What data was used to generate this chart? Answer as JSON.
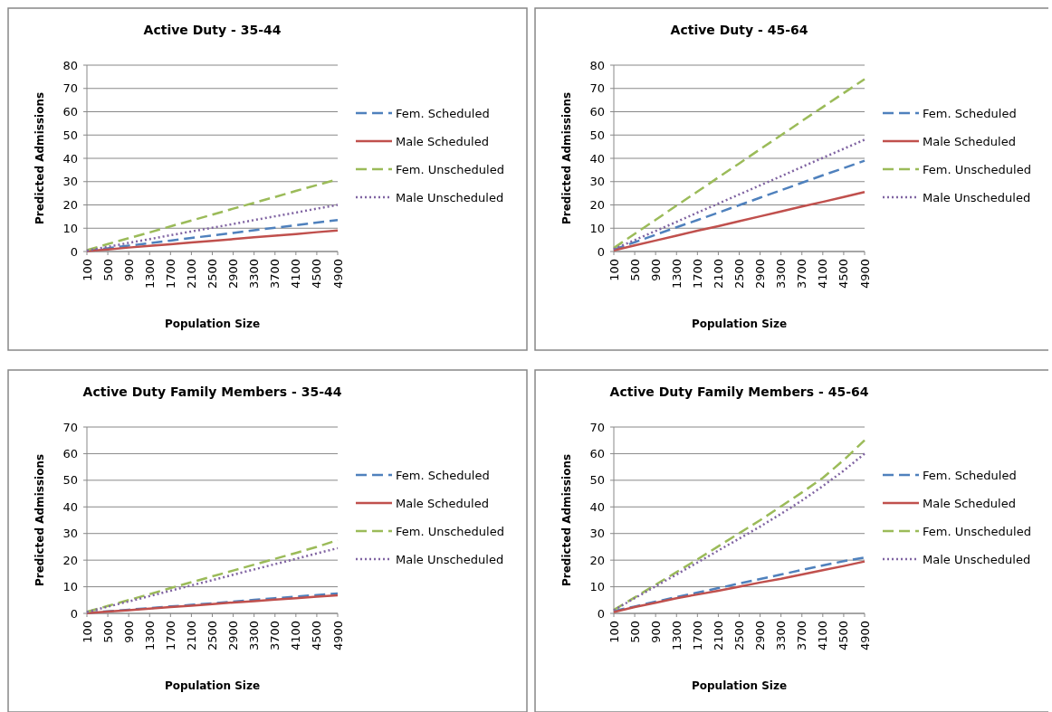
{
  "chart_data": [
    {
      "type": "line",
      "title": "Active Duty - 35-44",
      "xlabel": "Population Size",
      "ylabel": "Predicted Admissions",
      "categories": [
        "100",
        "500",
        "900",
        "1300",
        "1700",
        "2100",
        "2500",
        "2900",
        "3300",
        "3700",
        "4100",
        "4500",
        "4900"
      ],
      "ylim": [
        0,
        80
      ],
      "yticks": [
        0,
        10,
        20,
        30,
        40,
        50,
        60,
        70,
        80
      ],
      "grid": "y",
      "legend": "right",
      "series": [
        {
          "name": "Fem. Scheduled",
          "color": "#4f81bd",
          "line_style": "dashed",
          "values": [
            0.3,
            1.4,
            2.5,
            3.6,
            4.7,
            5.8,
            6.9,
            8,
            9.1,
            10.2,
            11.3,
            12.4,
            13.5
          ]
        },
        {
          "name": "Male Scheduled",
          "color": "#c0504d",
          "line_style": "solid",
          "values": [
            0.2,
            0.9,
            1.7,
            2.4,
            3.1,
            3.9,
            4.6,
            5.3,
            6.1,
            6.8,
            7.5,
            8.3,
            9
          ]
        },
        {
          "name": "Fem. Unscheduled",
          "color": "#9bbb59",
          "line_style": "dashed",
          "values": [
            0.6,
            3.2,
            5.7,
            8.2,
            10.8,
            13.3,
            15.8,
            18.4,
            20.9,
            23.4,
            26,
            28.5,
            31
          ]
        },
        {
          "name": "Male Unscheduled",
          "color": "#8064a2",
          "line_style": "dotted",
          "values": [
            0.4,
            2,
            3.7,
            5.3,
            7,
            8.6,
            10.2,
            11.8,
            13.5,
            15.1,
            16.7,
            18.4,
            20
          ]
        }
      ]
    },
    {
      "type": "line",
      "title": "Active Duty - 45-64",
      "xlabel": "Population Size",
      "ylabel": "Predicted Admissions",
      "categories": [
        "100",
        "500",
        "900",
        "1300",
        "1700",
        "2100",
        "2500",
        "2900",
        "3300",
        "3700",
        "4100",
        "4500",
        "4900"
      ],
      "ylim": [
        0,
        80
      ],
      "yticks": [
        0,
        10,
        20,
        30,
        40,
        50,
        60,
        70,
        80
      ],
      "grid": "y",
      "legend": "right",
      "series": [
        {
          "name": "Fem. Scheduled",
          "color": "#4f81bd",
          "line_style": "dashed",
          "values": [
            0.8,
            4,
            7.2,
            10.4,
            13.5,
            16.7,
            19.9,
            23.1,
            26.3,
            29.5,
            32.7,
            35.8,
            39
          ]
        },
        {
          "name": "Male Scheduled",
          "color": "#c0504d",
          "line_style": "solid",
          "values": [
            0.5,
            2.6,
            4.7,
            6.8,
            8.9,
            10.9,
            13,
            15.1,
            17.2,
            19.3,
            21.3,
            23.4,
            25.5
          ]
        },
        {
          "name": "Fem. Unscheduled",
          "color": "#9bbb59",
          "line_style": "dashed",
          "values": [
            1.5,
            7.6,
            13.6,
            19.7,
            25.7,
            31.8,
            37.8,
            43.9,
            49.9,
            56,
            62,
            68,
            74
          ]
        },
        {
          "name": "Male Unscheduled",
          "color": "#8064a2",
          "line_style": "dotted",
          "values": [
            1,
            4.9,
            8.8,
            12.7,
            16.7,
            20.6,
            24.5,
            28.4,
            32.3,
            36.3,
            40.2,
            44.1,
            48
          ]
        }
      ]
    },
    {
      "type": "line",
      "title": "Active Duty Family Members - 35-44",
      "xlabel": "Population Size",
      "ylabel": "Predicted Admissions",
      "categories": [
        "100",
        "500",
        "900",
        "1300",
        "1700",
        "2100",
        "2500",
        "2900",
        "3300",
        "3700",
        "4100",
        "4500",
        "4900"
      ],
      "ylim": [
        0,
        70
      ],
      "yticks": [
        0,
        10,
        20,
        30,
        40,
        50,
        60,
        70
      ],
      "grid": "y",
      "legend": "right",
      "series": [
        {
          "name": "Fem. Scheduled",
          "color": "#4f81bd",
          "line_style": "dashed",
          "values": [
            0.2,
            0.8,
            1.4,
            2,
            2.6,
            3.2,
            3.8,
            4.4,
            5.1,
            5.7,
            6.3,
            6.9,
            7.5
          ]
        },
        {
          "name": "Male Scheduled",
          "color": "#c0504d",
          "line_style": "solid",
          "values": [
            0.1,
            0.7,
            1.2,
            1.8,
            2.4,
            2.9,
            3.5,
            4.1,
            4.6,
            5.2,
            5.7,
            6.3,
            6.8
          ]
        },
        {
          "name": "Fem. Unscheduled",
          "color": "#9bbb59",
          "line_style": "dashed",
          "values": [
            0.6,
            2.8,
            5,
            7.2,
            9.5,
            11.7,
            13.9,
            16.1,
            18.3,
            20.5,
            22.7,
            25,
            27.5
          ]
        },
        {
          "name": "Male Unscheduled",
          "color": "#8064a2",
          "line_style": "dotted",
          "values": [
            0.5,
            2.5,
            4.5,
            6.5,
            8.5,
            10.5,
            12.5,
            14.5,
            16.5,
            18.5,
            20.5,
            22.5,
            24.5
          ]
        }
      ]
    },
    {
      "type": "line",
      "title": "Active Duty Family Members - 45-64",
      "xlabel": "Population Size",
      "ylabel": "Predicted Admissions",
      "categories": [
        "100",
        "500",
        "900",
        "1300",
        "1700",
        "2100",
        "2500",
        "2900",
        "3300",
        "3700",
        "4100",
        "4500",
        "4900"
      ],
      "ylim": [
        0,
        70
      ],
      "yticks": [
        0,
        10,
        20,
        30,
        40,
        50,
        60,
        70
      ],
      "grid": "y",
      "legend": "right",
      "series": [
        {
          "name": "Fem. Scheduled",
          "color": "#4f81bd",
          "line_style": "dashed",
          "values": [
            0.9,
            2.6,
            4.4,
            6.1,
            7.8,
            9.5,
            11.2,
            12.9,
            14.6,
            16.3,
            18,
            19.6,
            21
          ]
        },
        {
          "name": "Male Scheduled",
          "color": "#c0504d",
          "line_style": "solid",
          "values": [
            0.5,
            2.4,
            4,
            5.7,
            7.1,
            8.5,
            10,
            11.6,
            13,
            14.6,
            16.2,
            17.8,
            19.5
          ]
        },
        {
          "name": "Fem. Unscheduled",
          "color": "#9bbb59",
          "line_style": "dashed",
          "values": [
            1.3,
            6,
            10.8,
            15.5,
            20.3,
            25.2,
            30.1,
            35,
            40.2,
            45.4,
            50.9,
            57.6,
            65
          ]
        },
        {
          "name": "Male Unscheduled",
          "color": "#8064a2",
          "line_style": "dotted",
          "values": [
            1.2,
            5.7,
            10.2,
            14.6,
            19.1,
            23.6,
            28.1,
            32.6,
            37.4,
            42.4,
            47.8,
            53.6,
            60
          ]
        }
      ]
    }
  ]
}
